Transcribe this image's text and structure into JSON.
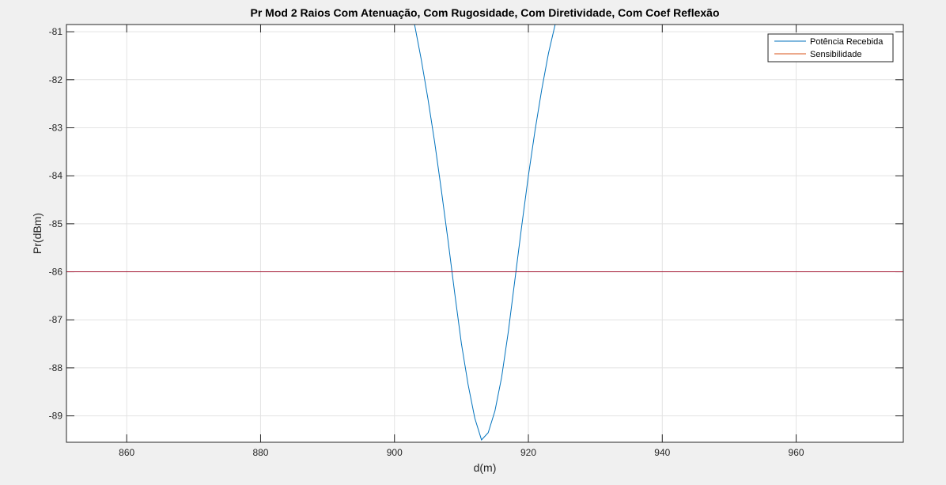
{
  "chart_data": {
    "type": "line",
    "title": "Pr Mod 2 Raios Com Atenuação, Com Rugosidade, Com Diretividade, Com Coef Reflexão",
    "xlabel": "d(m)",
    "ylabel": "Pr(dBm)",
    "xlim": [
      851,
      976
    ],
    "ylim": [
      -89.55,
      -80.85
    ],
    "xticks": [
      860,
      880,
      900,
      920,
      940,
      960
    ],
    "yticks": [
      -81,
      -82,
      -83,
      -84,
      -85,
      -86,
      -87,
      -88,
      -89
    ],
    "grid": true,
    "legend_position": "top-right",
    "series": [
      {
        "name": "Potência Recebida",
        "color": "#0072BD",
        "x": [
          902.5,
          903,
          904,
          905,
          906,
          907,
          908,
          909,
          910,
          911,
          912,
          913,
          914,
          915,
          916,
          917,
          918,
          919,
          920,
          921,
          922,
          923,
          924,
          925,
          926
        ],
        "y": [
          -80.5,
          -80.85,
          -81.58,
          -82.4,
          -83.3,
          -84.3,
          -85.35,
          -86.45,
          -87.5,
          -88.35,
          -89.05,
          -89.5,
          -89.35,
          -88.9,
          -88.2,
          -87.25,
          -86.15,
          -85.05,
          -84.0,
          -83.05,
          -82.2,
          -81.45,
          -80.85,
          -80.5,
          -80.3
        ]
      },
      {
        "name": "Sensibilidade",
        "color": "#D95319",
        "x": [
          851,
          976
        ],
        "y": [
          -86,
          -86
        ]
      }
    ]
  }
}
